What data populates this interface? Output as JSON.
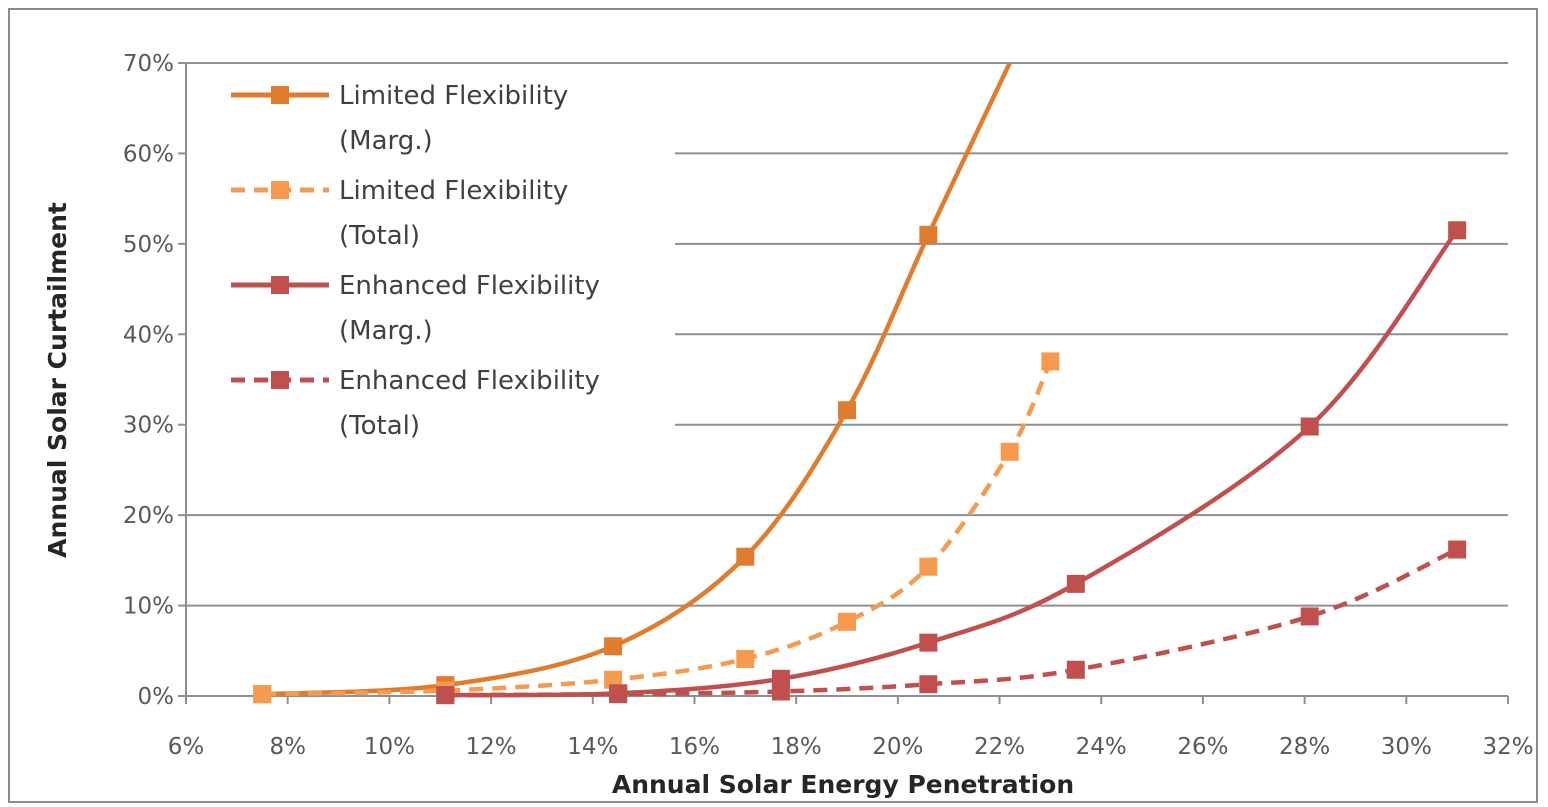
{
  "chart_data": {
    "type": "line",
    "title": "",
    "xlabel": "Annual Solar Energy Penetration",
    "ylabel": "Annual Solar Curtailment",
    "xlim": [
      6,
      32
    ],
    "ylim": [
      0,
      70
    ],
    "x_ticks": [
      "6%",
      "8%",
      "10%",
      "12%",
      "14%",
      "16%",
      "18%",
      "20%",
      "22%",
      "24%",
      "26%",
      "28%",
      "30%",
      "32%"
    ],
    "y_ticks": [
      "0%",
      "10%",
      "20%",
      "30%",
      "40%",
      "50%",
      "60%",
      "70%"
    ],
    "grid": "horizontal",
    "legend_position": "top-left",
    "series": [
      {
        "name": "Limited Flexibility (Marg.)",
        "name_lines": [
          "Limited Flexibility",
          "(Marg.)"
        ],
        "color": "#E07C2E",
        "dashed": false,
        "points": [
          [
            7.5,
            0.2
          ],
          [
            11.1,
            1.2
          ],
          [
            14.4,
            5.5
          ],
          [
            17.0,
            15.4
          ],
          [
            19.0,
            31.6
          ],
          [
            20.6,
            51.0
          ],
          [
            22.2,
            70.0
          ]
        ],
        "marker_count": 6
      },
      {
        "name": "Limited Flexibility (Total)",
        "name_lines": [
          "Limited Flexibility",
          "(Total)"
        ],
        "color": "#F59A4F",
        "dashed": true,
        "points": [
          [
            7.5,
            0.2
          ],
          [
            11.1,
            0.6
          ],
          [
            14.4,
            1.8
          ],
          [
            17.0,
            4.1
          ],
          [
            19.0,
            8.2
          ],
          [
            20.6,
            14.3
          ],
          [
            22.2,
            27.0
          ],
          [
            23.0,
            37.0
          ]
        ],
        "marker_count": 8
      },
      {
        "name": "Enhanced Flexibility (Marg.)",
        "name_lines": [
          "Enhanced Flexibility",
          "(Marg.)"
        ],
        "color": "#C0504D",
        "dashed": false,
        "points": [
          [
            11.1,
            0.1
          ],
          [
            14.5,
            0.3
          ],
          [
            17.7,
            1.9
          ],
          [
            20.6,
            5.9
          ],
          [
            23.5,
            12.4
          ],
          [
            28.1,
            29.8
          ],
          [
            31.0,
            51.5
          ]
        ],
        "marker_count": 7
      },
      {
        "name": "Enhanced Flexibility (Total)",
        "name_lines": [
          "Enhanced Flexibility",
          "(Total)"
        ],
        "color": "#C0504D",
        "dashed": true,
        "points": [
          [
            11.1,
            0.1
          ],
          [
            14.5,
            0.2
          ],
          [
            17.7,
            0.5
          ],
          [
            20.6,
            1.3
          ],
          [
            23.5,
            2.9
          ],
          [
            28.1,
            8.8
          ],
          [
            31.0,
            16.2
          ]
        ],
        "marker_count": 7
      }
    ]
  }
}
